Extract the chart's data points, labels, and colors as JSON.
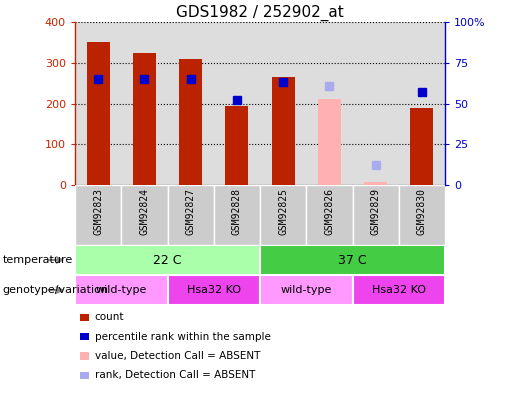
{
  "title": "GDS1982 / 252902_at",
  "samples": [
    "GSM92823",
    "GSM92824",
    "GSM92827",
    "GSM92828",
    "GSM92825",
    "GSM92826",
    "GSM92829",
    "GSM92830"
  ],
  "count_values": [
    352,
    325,
    308,
    195,
    265,
    210,
    8,
    188
  ],
  "count_absent": [
    false,
    false,
    false,
    false,
    false,
    true,
    true,
    false
  ],
  "rank_values": [
    65,
    65,
    65,
    52,
    63,
    61,
    12,
    57
  ],
  "rank_absent": [
    false,
    false,
    false,
    false,
    false,
    true,
    true,
    false
  ],
  "bar_color_present": "#BB2200",
  "bar_color_absent": "#FFB0B0",
  "marker_color_present": "#0000CC",
  "marker_color_absent": "#AAAAEE",
  "ylim_left": [
    0,
    400
  ],
  "ylim_right": [
    0,
    100
  ],
  "yticks_left": [
    0,
    100,
    200,
    300,
    400
  ],
  "ytick_labels_left": [
    "0",
    "100",
    "200",
    "300",
    "400"
  ],
  "yticks_right": [
    0,
    25,
    50,
    75,
    100
  ],
  "ytick_labels_right": [
    "0",
    "25",
    "50",
    "75",
    "100%"
  ],
  "temperature_groups": [
    {
      "label": "22 C",
      "start": 0,
      "end": 4
    },
    {
      "label": "37 C",
      "start": 4,
      "end": 8
    }
  ],
  "temperature_color_light": "#AAFFAA",
  "temperature_color_dark": "#44CC44",
  "genotype_groups": [
    {
      "label": "wild-type",
      "start": 0,
      "end": 2,
      "color": "#FF99FF"
    },
    {
      "label": "Hsa32 KO",
      "start": 2,
      "end": 4,
      "color": "#EE44EE"
    },
    {
      "label": "wild-type",
      "start": 4,
      "end": 6,
      "color": "#FF99FF"
    },
    {
      "label": "Hsa32 KO",
      "start": 6,
      "end": 8,
      "color": "#EE44EE"
    }
  ],
  "left_label_temperature": "temperature",
  "left_label_genotype": "genotype/variation",
  "legend_items": [
    {
      "color": "#BB2200",
      "label": "count"
    },
    {
      "color": "#0000CC",
      "label": "percentile rank within the sample"
    },
    {
      "color": "#FFB0B0",
      "label": "value, Detection Call = ABSENT"
    },
    {
      "color": "#AAAAEE",
      "label": "rank, Detection Call = ABSENT"
    }
  ],
  "bar_width": 0.5,
  "marker_size": 6,
  "plot_bg_color": "#DDDDDD",
  "tick_color_left": "#CC2200",
  "tick_color_right": "#0000CC"
}
